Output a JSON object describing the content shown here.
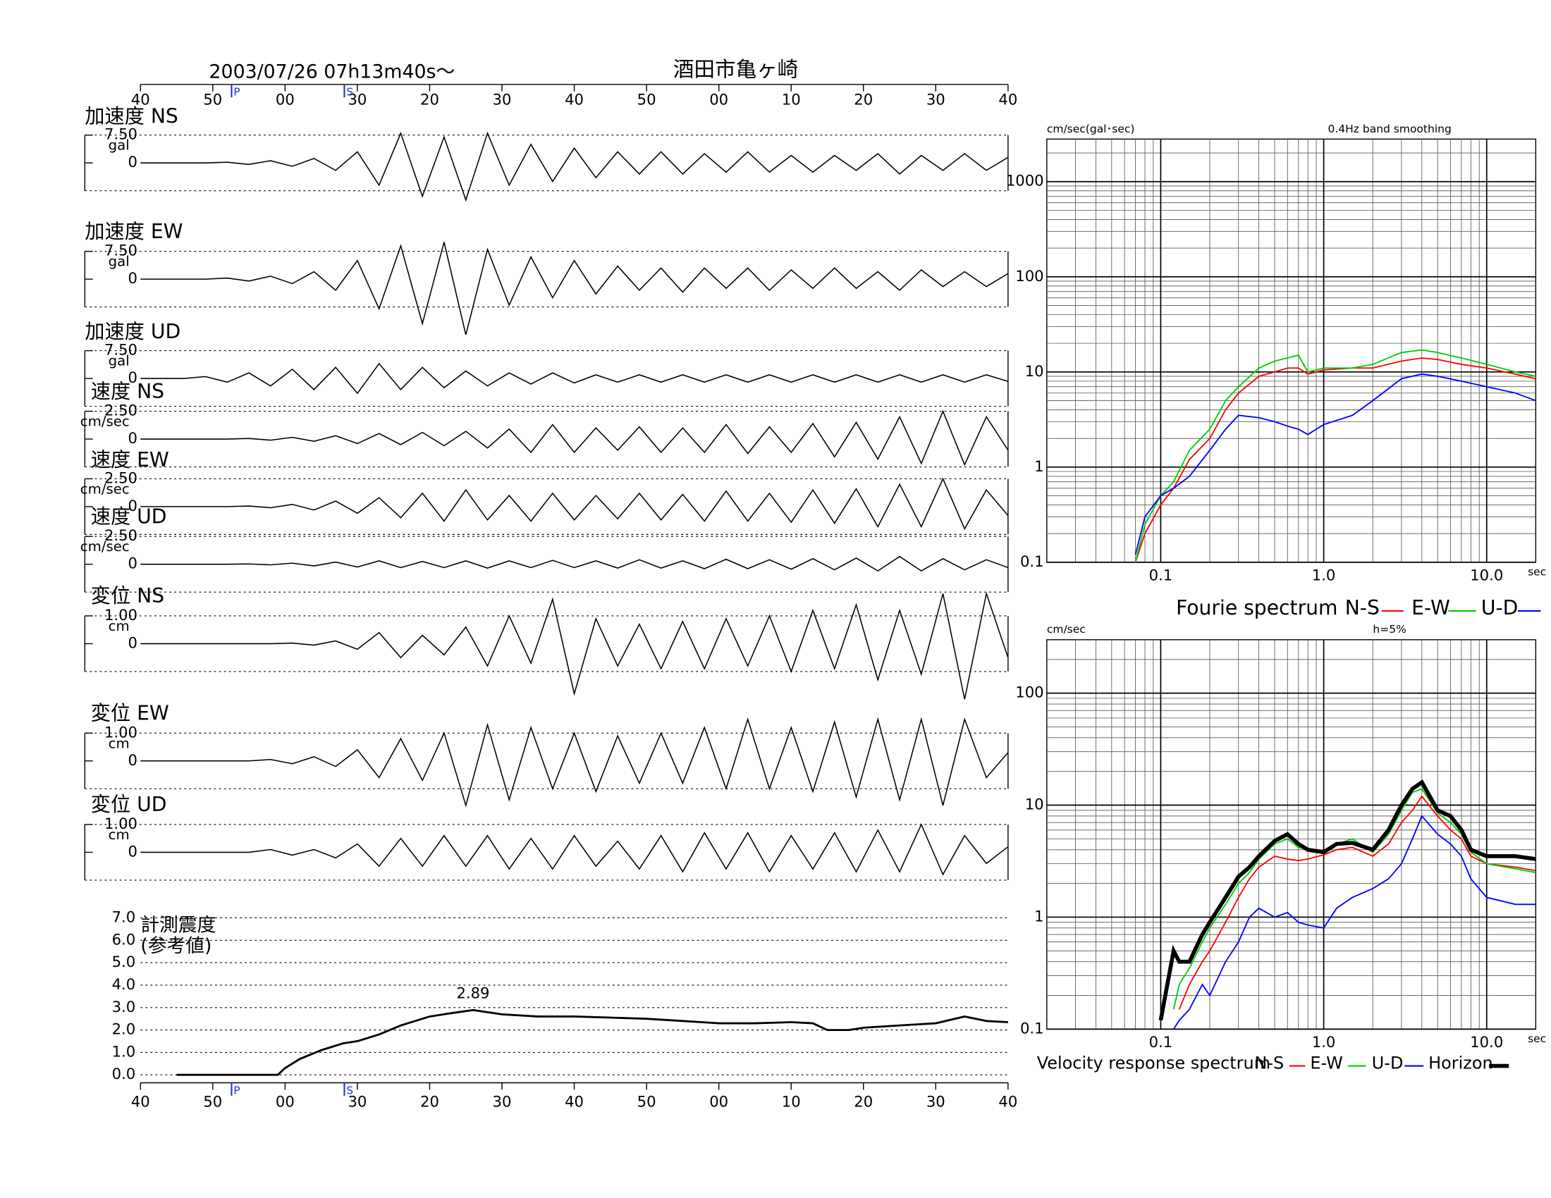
{
  "chart_data": [
    {
      "type": "waveforms",
      "title": "2003/07/26  07h13m40s〜",
      "location": "酒田市亀ヶ崎",
      "xlim": [
        0,
        120
      ],
      "xticks": [
        {
          "value": 0,
          "label": "40"
        },
        {
          "value": 10,
          "label": "50"
        },
        {
          "value": 20,
          "label": "00"
        },
        30,
        {
          "value": 40,
          "label": "20"
        },
        {
          "value": 50,
          "label": "30"
        },
        {
          "value": 60,
          "label": "40"
        },
        {
          "value": 70,
          "label": "50"
        },
        {
          "value": 80,
          "label": "00"
        },
        {
          "value": 90,
          "label": "10"
        },
        {
          "value": 100,
          "label": "20"
        },
        {
          "value": 110,
          "label": "30"
        },
        {
          "value": 120,
          "label": "40"
        }
      ],
      "markers": [
        {
          "label": "P",
          "x": 12.6
        },
        {
          "label": "S",
          "x": 28.2
        }
      ],
      "x": [
        0,
        3,
        6,
        9,
        12,
        15,
        18,
        21,
        24,
        27,
        30,
        33,
        36,
        39,
        42,
        45,
        48,
        51,
        54,
        57,
        60,
        63,
        66,
        69,
        72,
        75,
        78,
        81,
        84,
        87,
        90,
        93,
        96,
        99,
        102,
        105,
        108,
        111,
        114,
        117,
        120
      ],
      "traces": [
        {
          "title": "加速度 NS",
          "unit": "gal",
          "ylim": [
            -7.5,
            7.5
          ],
          "yticks": [
            {
              "value": 7.5,
              "label": "7.50"
            },
            0
          ],
          "values": [
            0,
            0,
            0,
            0,
            0.2,
            -0.4,
            0.6,
            -0.9,
            1.2,
            -2,
            3,
            -6,
            8,
            -9,
            7,
            -10,
            8,
            -6,
            5,
            -5,
            4,
            -4,
            3,
            -3,
            3,
            -3,
            2.5,
            -2.5,
            3,
            -2.5,
            2,
            -2.5,
            2,
            -2,
            2.5,
            -3,
            2,
            -2,
            2.5,
            -2,
            1.5
          ]
        },
        {
          "title": "加速度 EW",
          "unit": "gal",
          "ylim": [
            -7.5,
            7.5
          ],
          "yticks": [
            {
              "value": 7.5,
              "label": "7.50"
            },
            0
          ],
          "values": [
            0,
            0,
            0,
            0,
            0.3,
            -0.5,
            0.8,
            -1.2,
            2,
            -3,
            5,
            -8,
            9,
            -12,
            10,
            -15,
            8,
            -7,
            6,
            -5,
            5,
            -4,
            3.5,
            -3,
            3,
            -3.5,
            3,
            -2.5,
            3,
            -3,
            2.5,
            -2.5,
            3,
            -2.5,
            2,
            -3,
            2.5,
            -2,
            2,
            -2,
            1.5
          ]
        },
        {
          "title": "加速度 UD",
          "unit": "gal",
          "ylim": [
            -7.5,
            7.5
          ],
          "yticks": [
            {
              "value": 7.5,
              "label": "7.50"
            },
            0
          ],
          "values": [
            0,
            0,
            0,
            0.5,
            -1,
            1.5,
            -2,
            2.5,
            -3,
            3,
            -4,
            4,
            -3,
            3,
            -2.5,
            2,
            -2,
            1.5,
            -1.5,
            1.5,
            -1.2,
            1,
            -1,
            1,
            -1,
            1,
            -1,
            1,
            -1,
            1,
            -1,
            1,
            -1,
            1,
            -1,
            1,
            -1,
            1,
            -1,
            1,
            -0.8
          ]
        },
        {
          "title": "速度 NS",
          "unit": "cm/sec",
          "ylim": [
            -2.5,
            2.5
          ],
          "yticks": [
            {
              "value": 2.5,
              "label": "2.50"
            },
            0
          ],
          "values": [
            0,
            0,
            0,
            0,
            0,
            0.05,
            -0.1,
            0.15,
            -0.2,
            0.3,
            -0.4,
            0.5,
            -0.5,
            0.6,
            -0.6,
            0.7,
            -0.8,
            0.9,
            -1.2,
            1.3,
            -1.2,
            1,
            -1,
            1.1,
            -1.2,
            1,
            -1.2,
            1.3,
            -1.3,
            1.1,
            -1.2,
            1.4,
            -1.6,
            1.5,
            -1.8,
            2,
            -2.2,
            2.5,
            -2.3,
            2,
            -1
          ]
        },
        {
          "title": "速度 EW",
          "unit": "cm/sec",
          "ylim": [
            -2.5,
            2.5
          ],
          "yticks": [
            {
              "value": 2.5,
              "label": "2.50"
            },
            0
          ],
          "values": [
            0,
            0,
            0,
            0,
            0,
            0.05,
            -0.1,
            0.2,
            -0.3,
            0.5,
            -0.6,
            0.8,
            -1,
            1.2,
            -1.3,
            1.5,
            -1.2,
            1,
            -1.3,
            1.2,
            -1.2,
            1,
            -1.1,
            1.2,
            -1.2,
            1.1,
            -1.3,
            1.4,
            -1.3,
            1.2,
            -1.4,
            1.5,
            -1.5,
            1.6,
            -1.8,
            2,
            -1.8,
            2.5,
            -2,
            1.5,
            -0.8
          ]
        },
        {
          "title": "速度 UD",
          "unit": "cm/sec",
          "ylim": [
            -2.5,
            2.5
          ],
          "yticks": [
            {
              "value": 2.5,
              "label": "2.50"
            },
            0
          ],
          "values": [
            0,
            0,
            0,
            0,
            0,
            0.03,
            -0.05,
            0.1,
            -0.15,
            0.2,
            -0.25,
            0.3,
            -0.3,
            0.25,
            -0.3,
            0.3,
            -0.35,
            0.3,
            -0.3,
            0.35,
            -0.3,
            0.3,
            -0.35,
            0.4,
            -0.35,
            0.3,
            -0.4,
            0.45,
            -0.4,
            0.4,
            -0.45,
            0.5,
            -0.5,
            0.55,
            -0.6,
            0.7,
            -0.6,
            0.5,
            -0.5,
            0.4,
            -0.3
          ]
        },
        {
          "title": "変位 NS",
          "unit": "cm",
          "ylim": [
            -1,
            1
          ],
          "yticks": [
            {
              "value": 1,
              "label": "1.00"
            },
            0
          ],
          "values": [
            0,
            0,
            0,
            0,
            0,
            0,
            0,
            0.02,
            -0.05,
            0.1,
            -0.2,
            0.4,
            -0.5,
            0.3,
            -0.4,
            0.6,
            -0.8,
            1,
            -0.7,
            1.6,
            -1.8,
            0.9,
            -0.8,
            0.7,
            -0.9,
            0.8,
            -0.9,
            0.9,
            -0.8,
            1,
            -1,
            1.2,
            -0.9,
            1.4,
            -1.3,
            1.2,
            -1.1,
            1.8,
            -2,
            1.8,
            -0.5
          ]
        },
        {
          "title": "変位 EW",
          "unit": "cm",
          "ylim": [
            -1,
            1
          ],
          "yticks": [
            {
              "value": 1,
              "label": "1.00"
            },
            0
          ],
          "values": [
            0,
            0,
            0,
            0,
            0,
            0,
            0.05,
            -0.1,
            0.15,
            -0.2,
            0.4,
            -0.6,
            0.8,
            -0.7,
            1,
            -1.6,
            1.3,
            -1.4,
            1.2,
            -1,
            1,
            -1.1,
            0.9,
            -0.8,
            1,
            -0.8,
            1.2,
            -1,
            1.5,
            -1,
            1.2,
            -1.1,
            1.4,
            -1.3,
            1.5,
            -1.4,
            1.5,
            -1.6,
            1.5,
            -0.6,
            0.3
          ]
        },
        {
          "title": "変位 UD",
          "unit": "cm",
          "ylim": [
            -1,
            1
          ],
          "yticks": [
            {
              "value": 1,
              "label": "1.00"
            },
            0
          ],
          "values": [
            0,
            0,
            0,
            0,
            0,
            0,
            0.1,
            -0.1,
            0.1,
            -0.2,
            0.3,
            -0.5,
            0.5,
            -0.5,
            0.6,
            -0.5,
            0.6,
            -0.6,
            0.5,
            -0.6,
            0.6,
            -0.5,
            0.4,
            -0.6,
            0.6,
            -0.7,
            0.7,
            -0.6,
            0.7,
            -0.7,
            0.6,
            -0.6,
            0.7,
            -0.7,
            0.8,
            -0.7,
            1,
            -0.8,
            0.6,
            -0.4,
            0.2
          ]
        }
      ]
    },
    {
      "type": "line",
      "title": [
        "計測震度",
        "(参考値)"
      ],
      "xlim": [
        0,
        120
      ],
      "ylim": [
        0,
        7
      ],
      "yticks": [
        {
          "value": 0,
          "label": "0.0"
        },
        {
          "value": 1,
          "label": "1.0"
        },
        {
          "value": 2,
          "label": "2.0"
        },
        {
          "value": 3,
          "label": "3.0"
        },
        {
          "value": 4,
          "label": "4.0"
        },
        {
          "value": 5,
          "label": "5.0"
        },
        {
          "value": 6,
          "label": "6.0"
        },
        {
          "value": 7,
          "label": "7.0"
        }
      ],
      "x": [
        5,
        10,
        15,
        19,
        20,
        22,
        25,
        28,
        30,
        33,
        36,
        40,
        43,
        46,
        50,
        55,
        60,
        65,
        70,
        75,
        80,
        85,
        90,
        93,
        95,
        98,
        100,
        105,
        110,
        114,
        117,
        120
      ],
      "values": [
        0,
        0,
        0,
        0,
        0.3,
        0.7,
        1.1,
        1.4,
        1.5,
        1.8,
        2.2,
        2.6,
        2.75,
        2.89,
        2.7,
        2.6,
        2.6,
        2.55,
        2.5,
        2.4,
        2.3,
        2.3,
        2.35,
        2.3,
        2.0,
        2.0,
        2.1,
        2.2,
        2.3,
        2.6,
        2.4,
        2.35
      ],
      "annotations": [
        {
          "x": 46,
          "value": 2.89
        }
      ],
      "color": "#000000"
    },
    {
      "type": "line",
      "log": true,
      "ylabel": "cm/sec(gal･sec)",
      "note": "0.4Hz band smoothing",
      "xlabel": "sec",
      "legend_title": "Fourie spectrum",
      "xlim": [
        0.02,
        20
      ],
      "ylim": [
        0.1,
        2800
      ],
      "xticks": [
        0.1,
        {
          "value": 1,
          "label": "1.0"
        },
        {
          "value": 10,
          "label": "10.0"
        }
      ],
      "yticks": [
        0.1,
        1,
        10,
        100,
        1000
      ],
      "x": [
        0.07,
        0.08,
        0.1,
        0.12,
        0.15,
        0.2,
        0.25,
        0.3,
        0.4,
        0.5,
        0.6,
        0.7,
        0.8,
        1,
        1.5,
        2,
        3,
        4,
        5,
        7,
        10,
        15,
        20
      ],
      "series": [
        {
          "name": "N-S",
          "color": "#ff0000",
          "values": [
            0.1,
            0.2,
            0.4,
            0.6,
            1.2,
            2,
            4,
            6,
            9,
            10,
            11,
            11,
            9.5,
            10.5,
            11,
            11,
            13,
            14,
            13.5,
            12,
            11,
            9.5,
            8.5
          ]
        },
        {
          "name": "E-W",
          "color": "#00cc00",
          "values": [
            0.1,
            0.25,
            0.5,
            0.7,
            1.5,
            2.5,
            5,
            7,
            11,
            13,
            14,
            15,
            10,
            11,
            11,
            12,
            16,
            17,
            16,
            14,
            12,
            10,
            9
          ]
        },
        {
          "name": "U-D",
          "color": "#0000ff",
          "values": [
            0.12,
            0.3,
            0.5,
            0.6,
            0.8,
            1.5,
            2.5,
            3.5,
            3.3,
            3,
            2.7,
            2.5,
            2.2,
            2.8,
            3.5,
            5,
            8.5,
            9.5,
            9,
            8,
            7,
            6,
            5
          ]
        }
      ]
    },
    {
      "type": "line",
      "log": true,
      "ylabel": "cm/sec",
      "note": "h=5%",
      "xlabel": "sec",
      "legend_title": "Velocity response spectrum",
      "xlim": [
        0.02,
        20
      ],
      "ylim": [
        0.1,
        300
      ],
      "xticks": [
        0.1,
        {
          "value": 1,
          "label": "1.0"
        },
        {
          "value": 10,
          "label": "10.0"
        }
      ],
      "yticks": [
        0.1,
        1,
        10,
        100
      ],
      "x": [
        0.1,
        0.12,
        0.13,
        0.15,
        0.18,
        0.2,
        0.25,
        0.3,
        0.35,
        0.4,
        0.5,
        0.6,
        0.7,
        0.8,
        1,
        1.2,
        1.5,
        2,
        2.5,
        3,
        3.5,
        4,
        5,
        6,
        7,
        8,
        10,
        15,
        20
      ],
      "series": [
        {
          "name": "N-S",
          "color": "#ff0000",
          "values": [
            null,
            null,
            0.15,
            0.25,
            0.4,
            0.5,
            0.9,
            1.5,
            2.2,
            2.8,
            3.5,
            3.3,
            3.2,
            3.3,
            3.6,
            4,
            4.2,
            3.5,
            4.5,
            7,
            9,
            12,
            8,
            6,
            5,
            3.5,
            3,
            2.8,
            2.6
          ]
        },
        {
          "name": "E-W",
          "color": "#00cc00",
          "values": [
            null,
            0.15,
            0.25,
            0.35,
            0.6,
            0.8,
            1.3,
            2,
            2.5,
            3.3,
            4.5,
            5,
            4.2,
            4,
            3.8,
            4.5,
            5,
            3.8,
            5.5,
            9,
            13,
            14,
            8.5,
            7,
            5.5,
            3.8,
            3,
            2.7,
            2.5
          ]
        },
        {
          "name": "U-D",
          "color": "#0000ff",
          "values": [
            null,
            0.1,
            0.12,
            0.15,
            0.25,
            0.2,
            0.4,
            0.6,
            1,
            1.2,
            1,
            1.1,
            0.9,
            0.85,
            0.8,
            1.2,
            1.5,
            1.8,
            2.2,
            3,
            5,
            8,
            5.5,
            4.5,
            3.5,
            2.2,
            1.5,
            1.3,
            1.3
          ]
        },
        {
          "name": "Horizon",
          "color": "#000000",
          "linewidth": 4,
          "values": [
            0.12,
            0.5,
            0.4,
            0.4,
            0.7,
            0.9,
            1.5,
            2.3,
            2.8,
            3.5,
            4.8,
            5.5,
            4.5,
            4,
            3.8,
            4.5,
            4.6,
            4,
            6,
            10,
            14,
            16,
            9,
            8,
            6,
            4,
            3.5,
            3.5,
            3.3
          ]
        }
      ]
    }
  ]
}
